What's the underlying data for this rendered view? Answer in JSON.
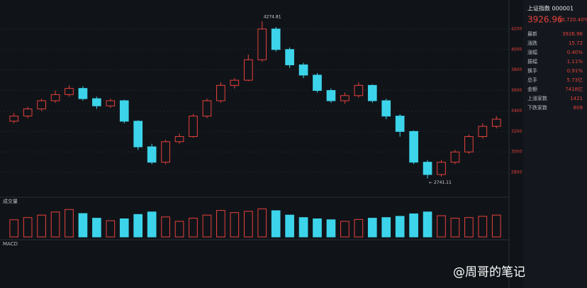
{
  "header": {
    "title": "上证指数 000001",
    "price": "3926.96",
    "change": "15.72",
    "pct": "0.40%"
  },
  "panel": {
    "rows": [
      {
        "label": "最新",
        "value": "3926.96"
      },
      {
        "label": "涨跌",
        "value": "15.72"
      },
      {
        "label": "涨幅",
        "value": "0.40%"
      },
      {
        "label": "振幅",
        "value": "1.11%"
      },
      {
        "label": "换手",
        "value": "0.91%"
      },
      {
        "label": "总手",
        "value": "5.73亿"
      },
      {
        "label": "金额",
        "value": "7418亿"
      },
      {
        "label": "上涨家数",
        "value": "1421"
      },
      {
        "label": "下跌家数",
        "value": "809"
      }
    ]
  },
  "volume_label": "成交量",
  "indicator_label": "MACD",
  "watermark": "@周哥的笔记",
  "chart_data": {
    "type": "candlestick",
    "open": [
      3300,
      3350,
      3420,
      3500,
      3560,
      3620,
      3520,
      3450,
      3500,
      3300,
      3050,
      2900,
      3100,
      3150,
      3350,
      3500,
      3650,
      3700,
      3900,
      4200,
      4000,
      3850,
      3750,
      3600,
      3500,
      3550,
      3650,
      3500,
      3350,
      3200,
      2900,
      2780,
      2900,
      3000,
      3150,
      3250
    ],
    "close": [
      3350,
      3420,
      3500,
      3560,
      3620,
      3520,
      3450,
      3500,
      3300,
      3050,
      2900,
      3100,
      3150,
      3350,
      3500,
      3650,
      3700,
      3900,
      4200,
      4000,
      3850,
      3750,
      3600,
      3500,
      3550,
      3650,
      3500,
      3350,
      3200,
      2900,
      2780,
      2900,
      3000,
      3150,
      3250,
      3320
    ],
    "high": [
      3380,
      3440,
      3520,
      3600,
      3650,
      3640,
      3540,
      3520,
      3510,
      3310,
      3080,
      3120,
      3180,
      3370,
      3520,
      3680,
      3720,
      3950,
      4274.81,
      4220,
      4020,
      3870,
      3770,
      3620,
      3580,
      3680,
      3660,
      3520,
      3370,
      3210,
      2920,
      2920,
      3020,
      3170,
      3280,
      3350
    ],
    "low": [
      3280,
      3330,
      3400,
      3480,
      3540,
      3500,
      3420,
      3430,
      3280,
      3020,
      2880,
      2880,
      3080,
      3140,
      3330,
      3480,
      3620,
      3690,
      3880,
      3980,
      3820,
      3720,
      3580,
      3480,
      3470,
      3530,
      3480,
      3320,
      3150,
      2880,
      2741.11,
      2760,
      2880,
      2980,
      3130,
      3230
    ],
    "volume": [
      55,
      62,
      70,
      80,
      88,
      75,
      60,
      52,
      58,
      72,
      80,
      64,
      50,
      60,
      70,
      85,
      78,
      82,
      90,
      84,
      70,
      62,
      58,
      55,
      50,
      56,
      60,
      62,
      66,
      74,
      80,
      68,
      60,
      62,
      66,
      70
    ],
    "ylim": [
      2600,
      4400
    ],
    "yticks": [
      2800,
      3000,
      3200,
      3400,
      3600,
      3800,
      4000,
      4200
    ],
    "volume_ylim": [
      0,
      100
    ],
    "annotations": [
      {
        "index": 18,
        "text": "4274.81"
      },
      {
        "index": 30,
        "text": "← 2741.11"
      }
    ],
    "up_color": "#e8403a",
    "down_color": "#3cd4ea"
  }
}
